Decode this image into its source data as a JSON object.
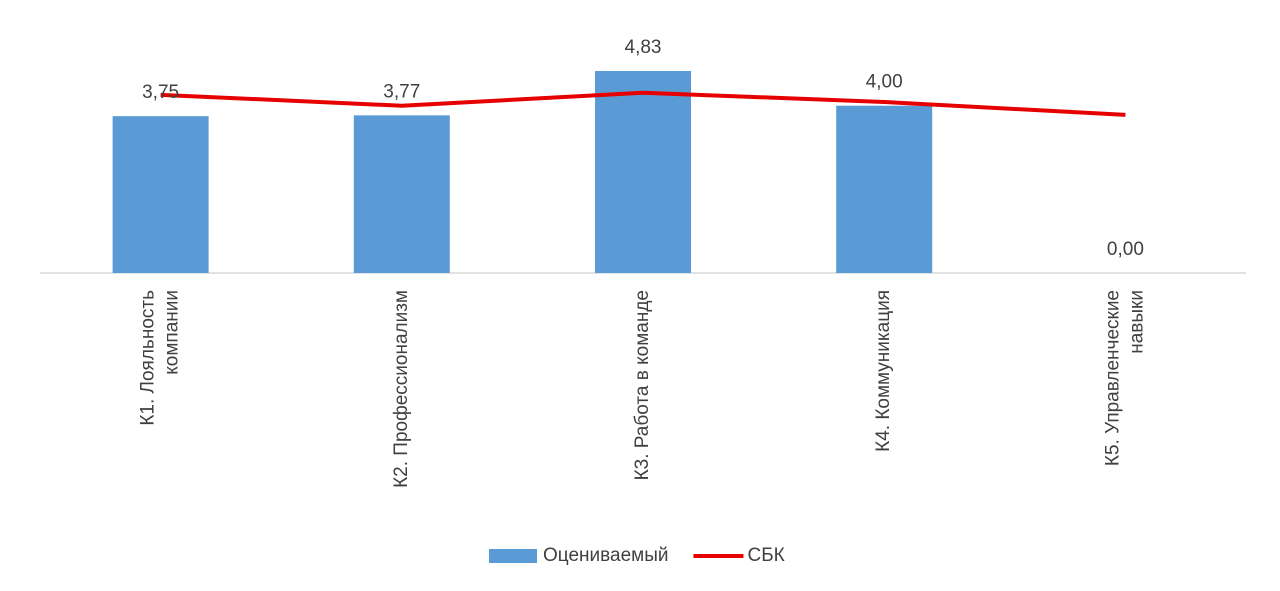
{
  "chart_data": {
    "type": "bar-line",
    "categories": [
      "К1. Лояльность компании",
      "К2. Профессионализм",
      "К3. Работа в команде",
      "К4. Коммуникация",
      "К5. Управленческие навыки"
    ],
    "series": [
      {
        "name": "Оцениваемый",
        "type": "bar",
        "color": "#5b9bd5",
        "values": [
          3.75,
          3.77,
          4.83,
          4.0,
          0.0
        ],
        "value_labels": [
          "3,75",
          "3,77",
          "4,83",
          "4,00",
          "0,00"
        ]
      },
      {
        "name": "СБК",
        "type": "line",
        "color": "#e60000",
        "values": [
          4.26,
          4.0,
          4.31,
          4.09,
          3.78
        ]
      }
    ],
    "legend": "bottom"
  }
}
